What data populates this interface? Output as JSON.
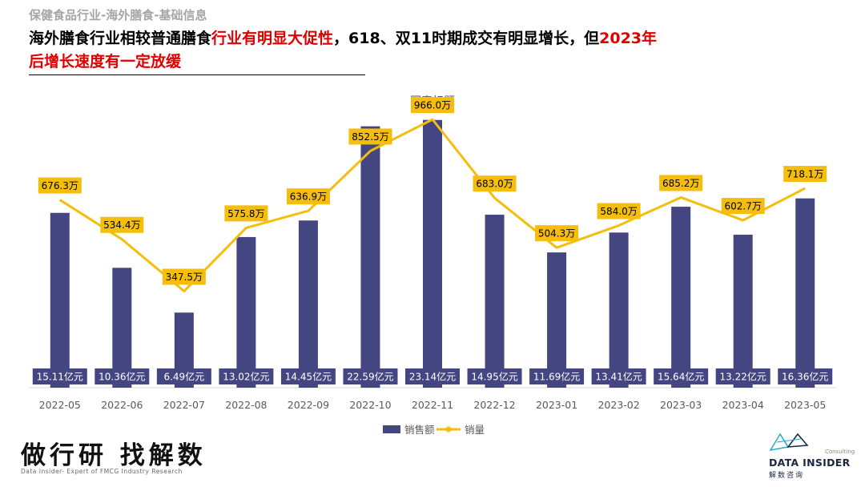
{
  "header": {
    "section": "保健食品行业-海外膳食-基础信息",
    "headline_parts": [
      {
        "text": "海外膳食行业相较普通膳食",
        "hl": false
      },
      {
        "text": "行业有明显大促性",
        "hl": true
      },
      {
        "text": "，618、双11时期成交有明显增长，但",
        "hl": false
      },
      {
        "text": "2023年后增长速度有一定放缓",
        "hl": true
      }
    ]
  },
  "colors": {
    "bar": "#444682",
    "line": "#f5bd0c",
    "highlight": "#e00000",
    "axis": "#d9d9d9"
  },
  "chart_data": {
    "type": "bar",
    "title": "图表标题",
    "categories": [
      "2022-05",
      "2022-06",
      "2022-07",
      "2022-08",
      "2022-09",
      "2022-10",
      "2022-11",
      "2022-12",
      "2023-01",
      "2023-02",
      "2023-03",
      "2023-04",
      "2023-05"
    ],
    "series": [
      {
        "name": "销售额",
        "type": "bar",
        "unit": "亿元",
        "values": [
          15.11,
          10.36,
          6.49,
          13.02,
          14.45,
          22.59,
          23.14,
          14.95,
          11.69,
          13.41,
          15.64,
          13.22,
          16.36
        ],
        "labels": [
          "15.11亿元",
          "10.36亿元",
          "6.49亿元",
          "13.02亿元",
          "14.45亿元",
          "22.59亿元",
          "23.14亿元",
          "14.95亿元",
          "11.69亿元",
          "13.41亿元",
          "15.64亿元",
          "13.22亿元",
          "16.36亿元"
        ]
      },
      {
        "name": "销量",
        "type": "line",
        "unit": "万",
        "values": [
          676.3,
          534.4,
          347.5,
          575.8,
          636.9,
          852.5,
          966.0,
          683.0,
          504.3,
          584.0,
          685.2,
          602.7,
          718.1
        ],
        "labels": [
          "676.3万",
          "534.4万",
          "347.5万",
          "575.8万",
          "636.9万",
          "852.5万",
          "966.0万",
          "683.0万",
          "504.3万",
          "584.0万",
          "685.2万",
          "602.7万",
          "718.1万"
        ]
      }
    ],
    "bar_axis_range": [
      0,
      25.2
    ],
    "line_axis_range": [
      0,
      1050
    ],
    "legend_position": "bottom"
  },
  "footer": {
    "slogan": "做行研 找解数",
    "sub": "Data Insider- Expert of FMCG Industry Research"
  },
  "logo": {
    "consulting": "Consulting",
    "name": "DATA INSIDER",
    "cn": "解数咨询"
  }
}
